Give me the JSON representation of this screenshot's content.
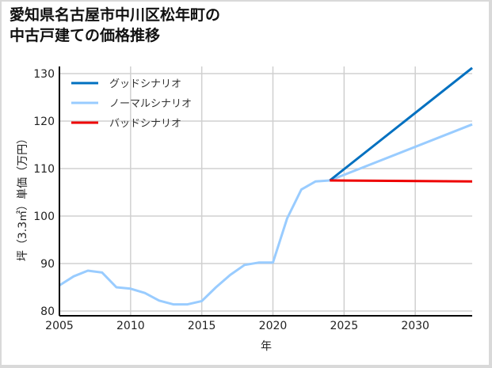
{
  "title": {
    "line1": "愛知県名古屋市中川区松年町の",
    "line2": "中古戸建ての価格推移"
  },
  "chart_data": {
    "type": "line",
    "title": "愛知県名古屋市中川区松年町の中古戸建ての価格推移",
    "xlabel": "年",
    "ylabel": "坪（3.3㎡）単価（万円）",
    "xlim": [
      2005,
      2034
    ],
    "ylim": [
      79,
      131.5
    ],
    "xticks": [
      2005,
      2010,
      2015,
      2020,
      2025,
      2030
    ],
    "yticks": [
      80,
      90,
      100,
      110,
      120,
      130
    ],
    "grid": true,
    "legend_position": "upper left",
    "series": [
      {
        "name": "グッドシナリオ",
        "color": "#0070c0",
        "x": [
          2024,
          2034
        ],
        "values": [
          107.5,
          131.2
        ]
      },
      {
        "name": "ノーマルシナリオ",
        "color": "#99ccff",
        "x": [
          2005,
          2006,
          2007,
          2008,
          2009,
          2010,
          2011,
          2012,
          2013,
          2014,
          2015,
          2016,
          2017,
          2018,
          2019,
          2020,
          2021,
          2022,
          2023,
          2024,
          2034
        ],
        "values": [
          85.4,
          87.3,
          88.5,
          88.1,
          85.0,
          84.7,
          83.8,
          82.2,
          81.4,
          81.4,
          82.1,
          85.0,
          87.6,
          89.7,
          90.2,
          90.2,
          99.5,
          105.6,
          107.3,
          107.5,
          119.3
        ]
      },
      {
        "name": "バッドシナリオ",
        "color": "#ee0000",
        "x": [
          2024,
          2034
        ],
        "values": [
          107.5,
          107.3
        ]
      }
    ]
  }
}
